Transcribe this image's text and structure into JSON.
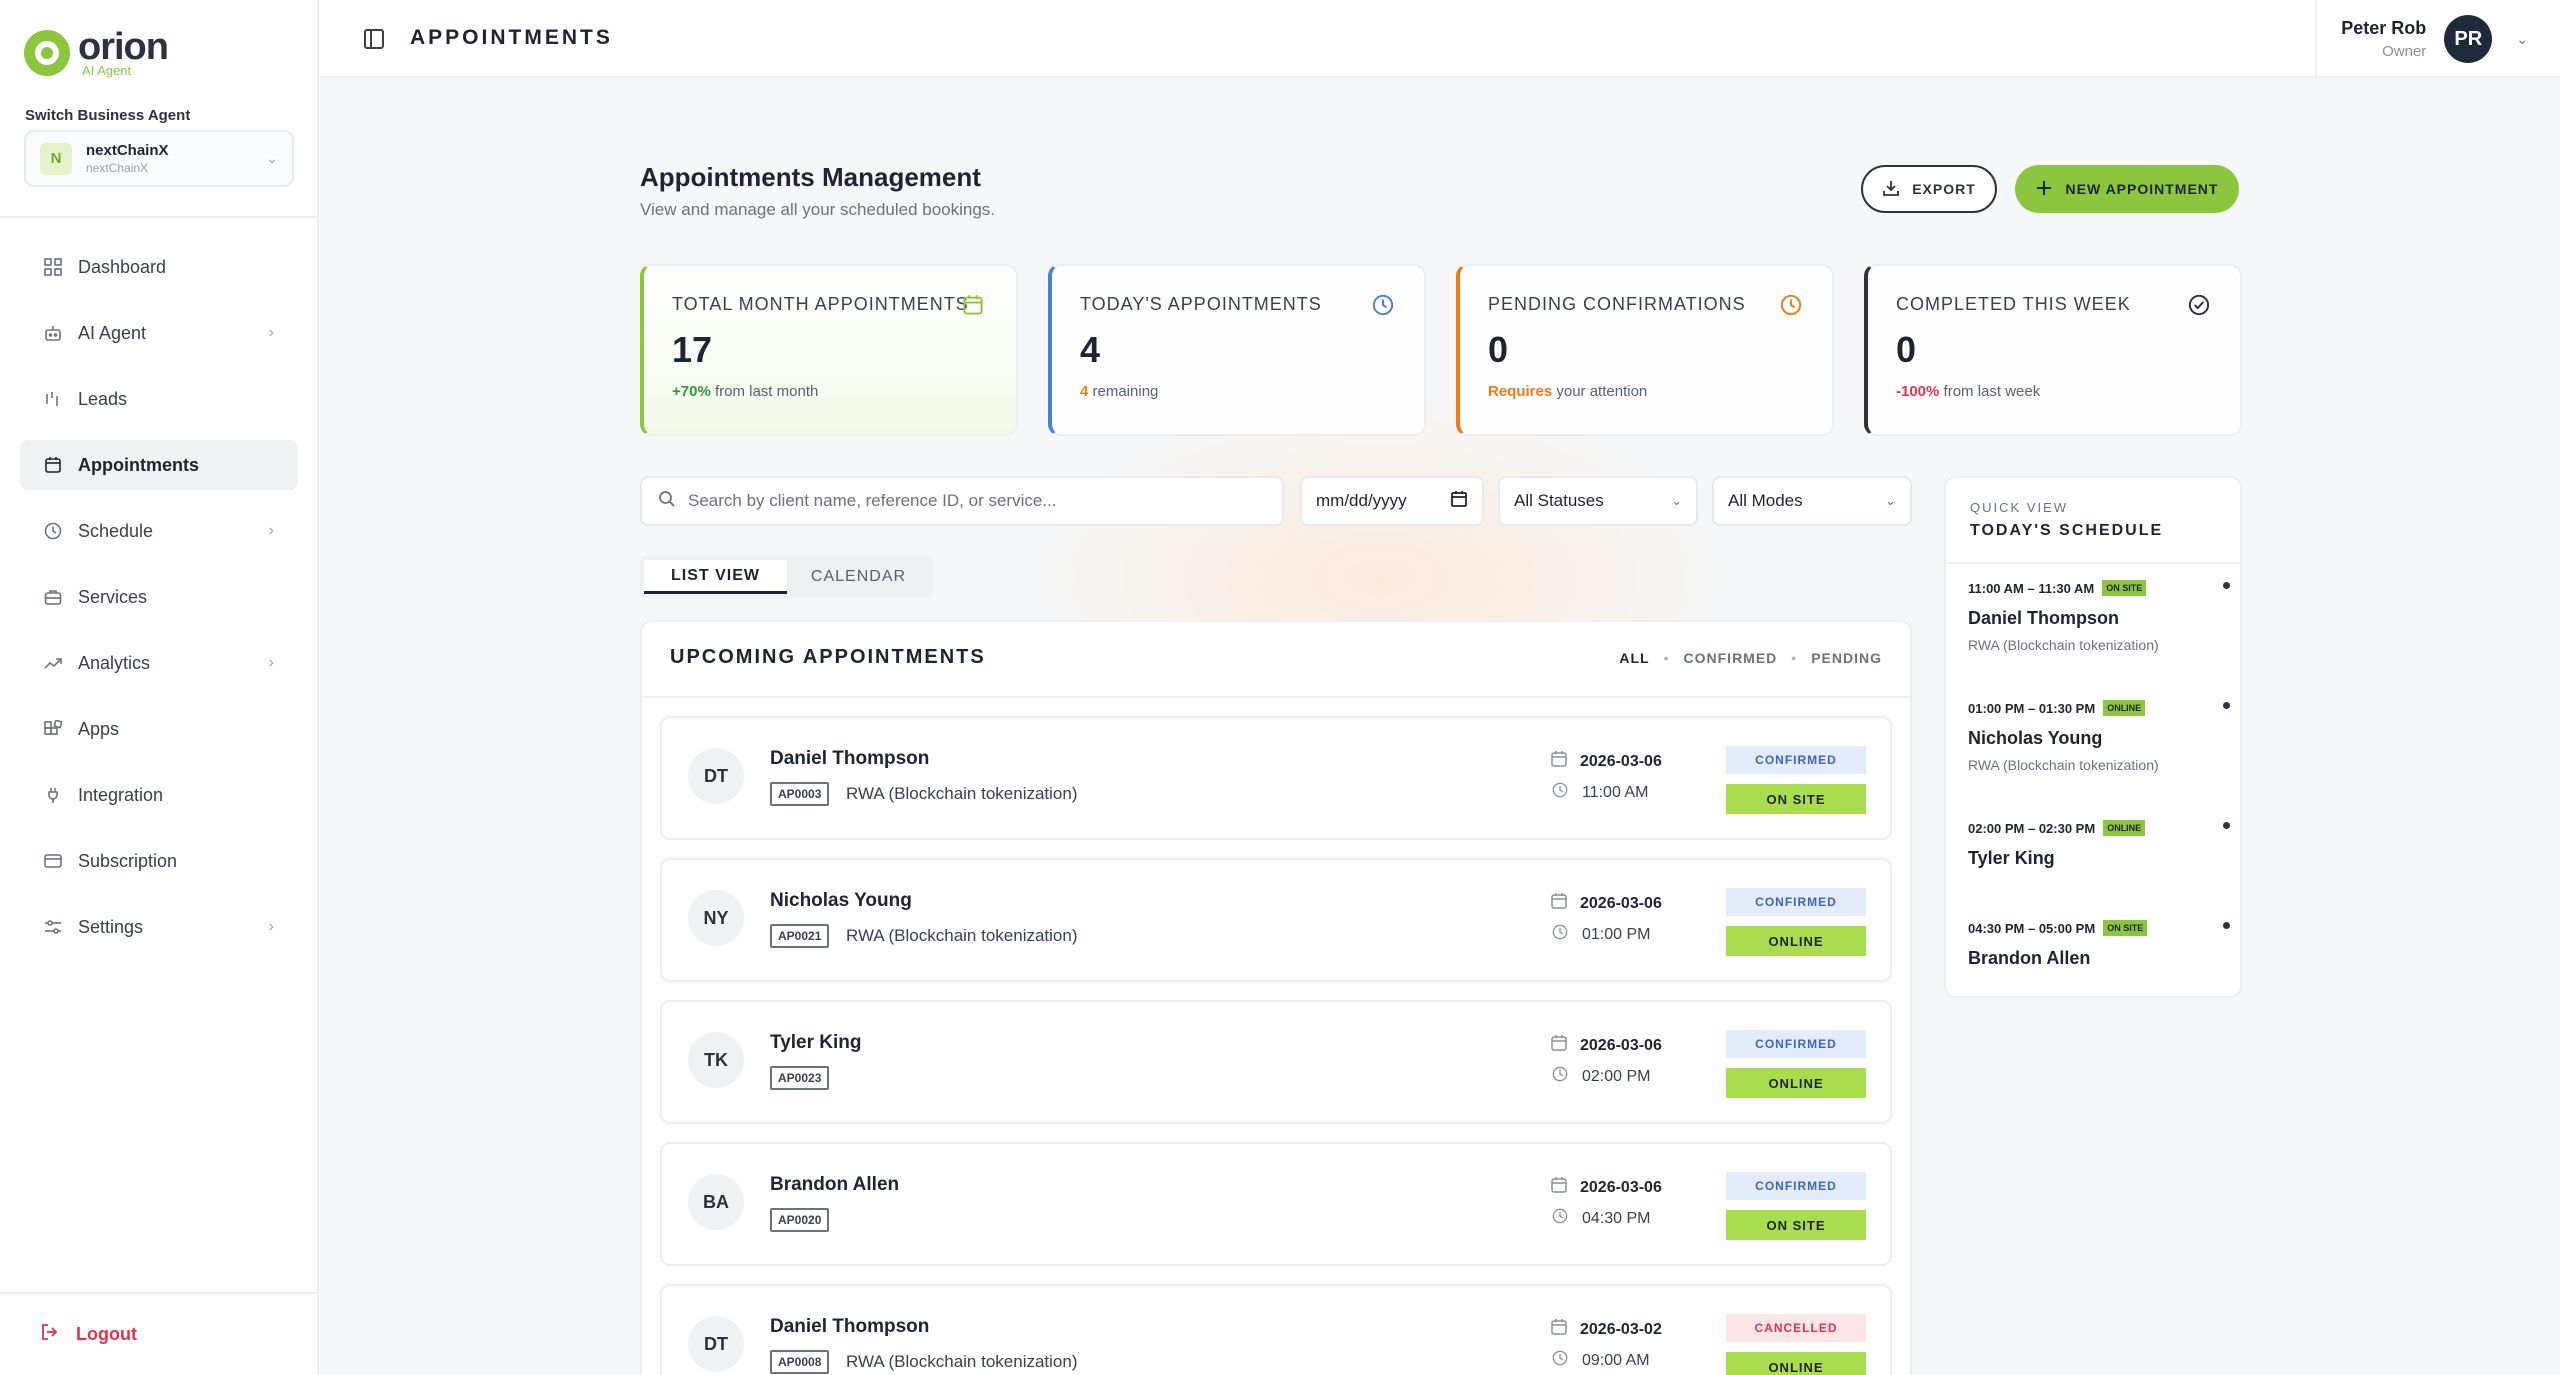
{
  "brand": {
    "name": "orion",
    "sub": "AI Agent"
  },
  "agent_switcher": {
    "label": "Switch Business Agent",
    "badge": "N",
    "name": "nextChainX",
    "sub": "nextChainX"
  },
  "nav": [
    {
      "label": "Dashboard",
      "icon": "grid-icon",
      "has_submenu": false
    },
    {
      "label": "AI Agent",
      "icon": "robot-icon",
      "has_submenu": true
    },
    {
      "label": "Leads",
      "icon": "bars-icon",
      "has_submenu": false
    },
    {
      "label": "Appointments",
      "icon": "calendar-icon",
      "has_submenu": false,
      "active": true
    },
    {
      "label": "Schedule",
      "icon": "clock-icon",
      "has_submenu": true
    },
    {
      "label": "Services",
      "icon": "briefcase-icon",
      "has_submenu": false
    },
    {
      "label": "Analytics",
      "icon": "trend-icon",
      "has_submenu": true
    },
    {
      "label": "Apps",
      "icon": "apps-icon",
      "has_submenu": false
    },
    {
      "label": "Integration",
      "icon": "plug-icon",
      "has_submenu": false
    },
    {
      "label": "Subscription",
      "icon": "card-icon",
      "has_submenu": false
    },
    {
      "label": "Settings",
      "icon": "sliders-icon",
      "has_submenu": true
    }
  ],
  "logout_label": "Logout",
  "header": {
    "title": "APPOINTMENTS",
    "user_name": "Peter Rob",
    "user_role": "Owner",
    "avatar": "PR"
  },
  "page": {
    "title": "Appointments Management",
    "subtitle": "View and manage all your scheduled bookings.",
    "export_label": "EXPORT",
    "new_label": "NEW APPOINTMENT"
  },
  "stats": [
    {
      "label": "TOTAL MONTH APPOINTMENTS",
      "value": "17",
      "highlight": "+70%",
      "note": " from last month",
      "highlight_color": "#2e9e3a",
      "icon": "calendar-icon",
      "icon_color": "#8cc63f"
    },
    {
      "label": "TODAY'S APPOINTMENTS",
      "value": "4",
      "highlight": "4",
      "note": " remaining",
      "highlight_color": "#f07a1a",
      "icon": "clock-icon",
      "icon_color": "#4a7fd8"
    },
    {
      "label": "PENDING CONFIRMATIONS",
      "value": "0",
      "highlight": "Requires",
      "note": " your attention",
      "highlight_color": "#f07a1a",
      "icon": "clock-icon",
      "icon_color": "#f07a1a"
    },
    {
      "label": "COMPLETED THIS WEEK",
      "value": "0",
      "highlight": "-100%",
      "note": " from last week",
      "highlight_color": "#e0344b",
      "icon": "check-circle-icon",
      "icon_color": "#2d3140"
    }
  ],
  "filters": {
    "search_placeholder": "Search by client name, reference ID, or service...",
    "date_placeholder": "mm/dd/yyyy",
    "status": "All Statuses",
    "mode": "All Modes"
  },
  "view_tabs": [
    "LIST VIEW",
    "CALENDAR"
  ],
  "panel": {
    "title": "UPCOMING APPOINTMENTS",
    "filter_links": [
      "ALL",
      "CONFIRMED",
      "PENDING"
    ]
  },
  "appointments": [
    {
      "initials": "DT",
      "name": "Daniel Thompson",
      "ref": "AP0003",
      "service": "RWA (Blockchain tokenization)",
      "date": "2026-03-06",
      "time": "11:00 AM",
      "status": "CONFIRMED",
      "mode": "ON SITE"
    },
    {
      "initials": "NY",
      "name": "Nicholas Young",
      "ref": "AP0021",
      "service": "RWA (Blockchain tokenization)",
      "date": "2026-03-06",
      "time": "01:00 PM",
      "status": "CONFIRMED",
      "mode": "ONLINE"
    },
    {
      "initials": "TK",
      "name": "Tyler King",
      "ref": "AP0023",
      "service": "",
      "date": "2026-03-06",
      "time": "02:00 PM",
      "status": "CONFIRMED",
      "mode": "ONLINE"
    },
    {
      "initials": "BA",
      "name": "Brandon Allen",
      "ref": "AP0020",
      "service": "",
      "date": "2026-03-06",
      "time": "04:30 PM",
      "status": "CONFIRMED",
      "mode": "ON SITE"
    },
    {
      "initials": "DT",
      "name": "Daniel Thompson",
      "ref": "AP0008",
      "service": "RWA (Blockchain tokenization)",
      "date": "2026-03-02",
      "time": "09:00 AM",
      "status": "CANCELLED",
      "mode": "ONLINE"
    }
  ],
  "quick_view": {
    "small": "QUICK VIEW",
    "title": "TODAY'S SCHEDULE",
    "items": [
      {
        "time": "11:00 AM – 11:30 AM",
        "mode": "ON SITE",
        "name": "Daniel Thompson",
        "service": "RWA (Blockchain tokenization)"
      },
      {
        "time": "01:00 PM – 01:30 PM",
        "mode": "ONLINE",
        "name": "Nicholas Young",
        "service": "RWA (Blockchain tokenization)"
      },
      {
        "time": "02:00 PM – 02:30 PM",
        "mode": "ONLINE",
        "name": "Tyler King",
        "service": ""
      },
      {
        "time": "04:30 PM – 05:00 PM",
        "mode": "ON SITE",
        "name": "Brandon Allen",
        "service": ""
      }
    ]
  }
}
